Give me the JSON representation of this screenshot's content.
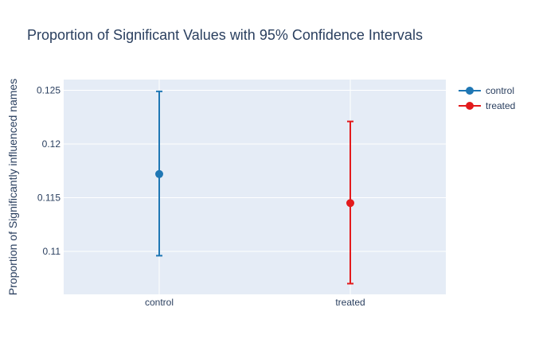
{
  "chart_data": {
    "type": "scatter",
    "title": "Proportion of Significant Values with 95% Confidence Intervals",
    "xlabel": "",
    "ylabel": "Proportion of Significantly influenced names",
    "categories": [
      "control",
      "treated"
    ],
    "series": [
      {
        "name": "control",
        "x": "control",
        "value": 0.1172,
        "ci_low": 0.1096,
        "ci_high": 0.1249,
        "color": "#1f77b4"
      },
      {
        "name": "treated",
        "x": "treated",
        "value": 0.1145,
        "ci_low": 0.107,
        "ci_high": 0.1221,
        "color": "#e31a1c"
      }
    ],
    "ylim": [
      0.106,
      0.126
    ],
    "yticks": [
      0.11,
      0.115,
      0.12,
      0.125
    ],
    "ytick_labels": [
      "0.11",
      "0.115",
      "0.12",
      "0.125"
    ],
    "grid": true,
    "legend_position": "top-right",
    "plot_background": "#e5ecf6"
  }
}
